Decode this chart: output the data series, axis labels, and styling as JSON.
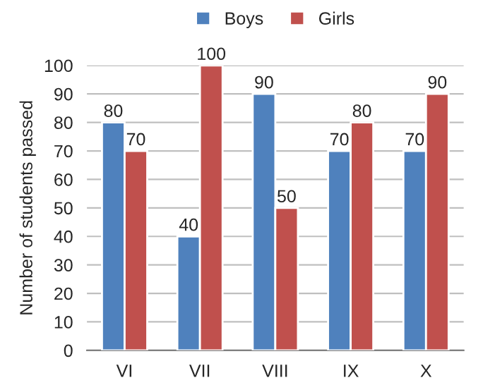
{
  "chart_data": {
    "type": "bar",
    "ylabel": "Number of students passed",
    "categories": [
      "VI",
      "VII",
      "VIII",
      "IX",
      "X"
    ],
    "series": [
      {
        "name": "Boys",
        "color": "#4f81bd",
        "values": [
          80,
          40,
          90,
          70,
          70
        ]
      },
      {
        "name": "Girls",
        "color": "#c0504d",
        "values": [
          70,
          100,
          50,
          80,
          90
        ]
      }
    ],
    "ylim": [
      0,
      100
    ],
    "yticks": [
      0,
      10,
      20,
      30,
      40,
      50,
      60,
      70,
      80,
      90,
      100
    ],
    "grid": "y",
    "legend": "top",
    "data_labels": true
  }
}
